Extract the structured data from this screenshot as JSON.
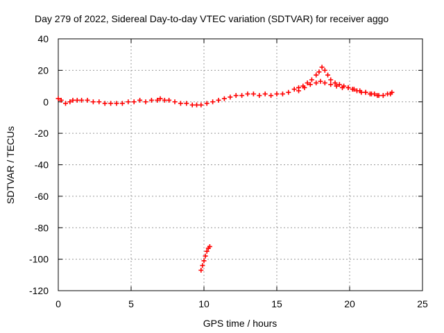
{
  "chart_data": {
    "type": "scatter",
    "title": "Day 279 of 2022, Sidereal Day-to-day VTEC variation (SDTVAR) for receiver aggo",
    "xlabel": "GPS time / hours",
    "ylabel": "SDTVAR / TECUs",
    "xlim": [
      0,
      25
    ],
    "ylim": [
      -120,
      40
    ],
    "xticks": [
      0,
      5,
      10,
      15,
      20,
      25
    ],
    "yticks": [
      -120,
      -100,
      -80,
      -60,
      -40,
      -20,
      0,
      20,
      40
    ],
    "grid": true,
    "marker": "+",
    "color": "#ff0000",
    "series": [
      {
        "name": "SDTVAR",
        "x": [
          0.0,
          0.2,
          0.5,
          0.8,
          1.0,
          1.3,
          1.6,
          2.0,
          2.4,
          2.8,
          3.2,
          3.6,
          4.0,
          4.4,
          4.8,
          5.2,
          5.6,
          6.0,
          6.4,
          6.8,
          7.0,
          7.3,
          7.6,
          8.0,
          8.4,
          8.8,
          9.2,
          9.5,
          9.8,
          10.2,
          10.6,
          11.0,
          11.4,
          11.8,
          12.2,
          12.6,
          13.0,
          13.4,
          13.8,
          14.2,
          14.6,
          15.0,
          15.4,
          15.8,
          16.2,
          16.5,
          16.8,
          17.1,
          17.4,
          17.7,
          17.9,
          18.1,
          18.3,
          18.5,
          18.7,
          19.0,
          19.3,
          19.6,
          19.9,
          20.2,
          20.5,
          20.8,
          21.1,
          21.4,
          21.7,
          22.0,
          22.3,
          22.6,
          22.9,
          16.5,
          16.9,
          17.3,
          17.7,
          18.0,
          18.3,
          18.7,
          19.1,
          19.5,
          19.9,
          20.3,
          20.7,
          21.1,
          21.5,
          21.9,
          22.3,
          22.8,
          9.8,
          9.9,
          10.0,
          10.1,
          10.2,
          10.3,
          10.4
        ],
        "y": [
          2,
          1,
          -1,
          0,
          1,
          1,
          1,
          1,
          0,
          0,
          -1,
          -1,
          -1,
          -1,
          0,
          0,
          1,
          0,
          1,
          1,
          2,
          1,
          1,
          0,
          -1,
          -1,
          -2,
          -2,
          -2,
          -1,
          0,
          1,
          2,
          3,
          4,
          4,
          5,
          5,
          4,
          5,
          4,
          5,
          5,
          6,
          8,
          9,
          10,
          12,
          14,
          17,
          19,
          22,
          20,
          17,
          14,
          12,
          11,
          10,
          9,
          8,
          7,
          6,
          6,
          5,
          5,
          4,
          4,
          5,
          6,
          7,
          9,
          11,
          12,
          13,
          12,
          11,
          10,
          9,
          9,
          8,
          7,
          6,
          5,
          4,
          4,
          5,
          -107,
          -104,
          -101,
          -98,
          -95,
          -93,
          -92
        ]
      }
    ]
  }
}
